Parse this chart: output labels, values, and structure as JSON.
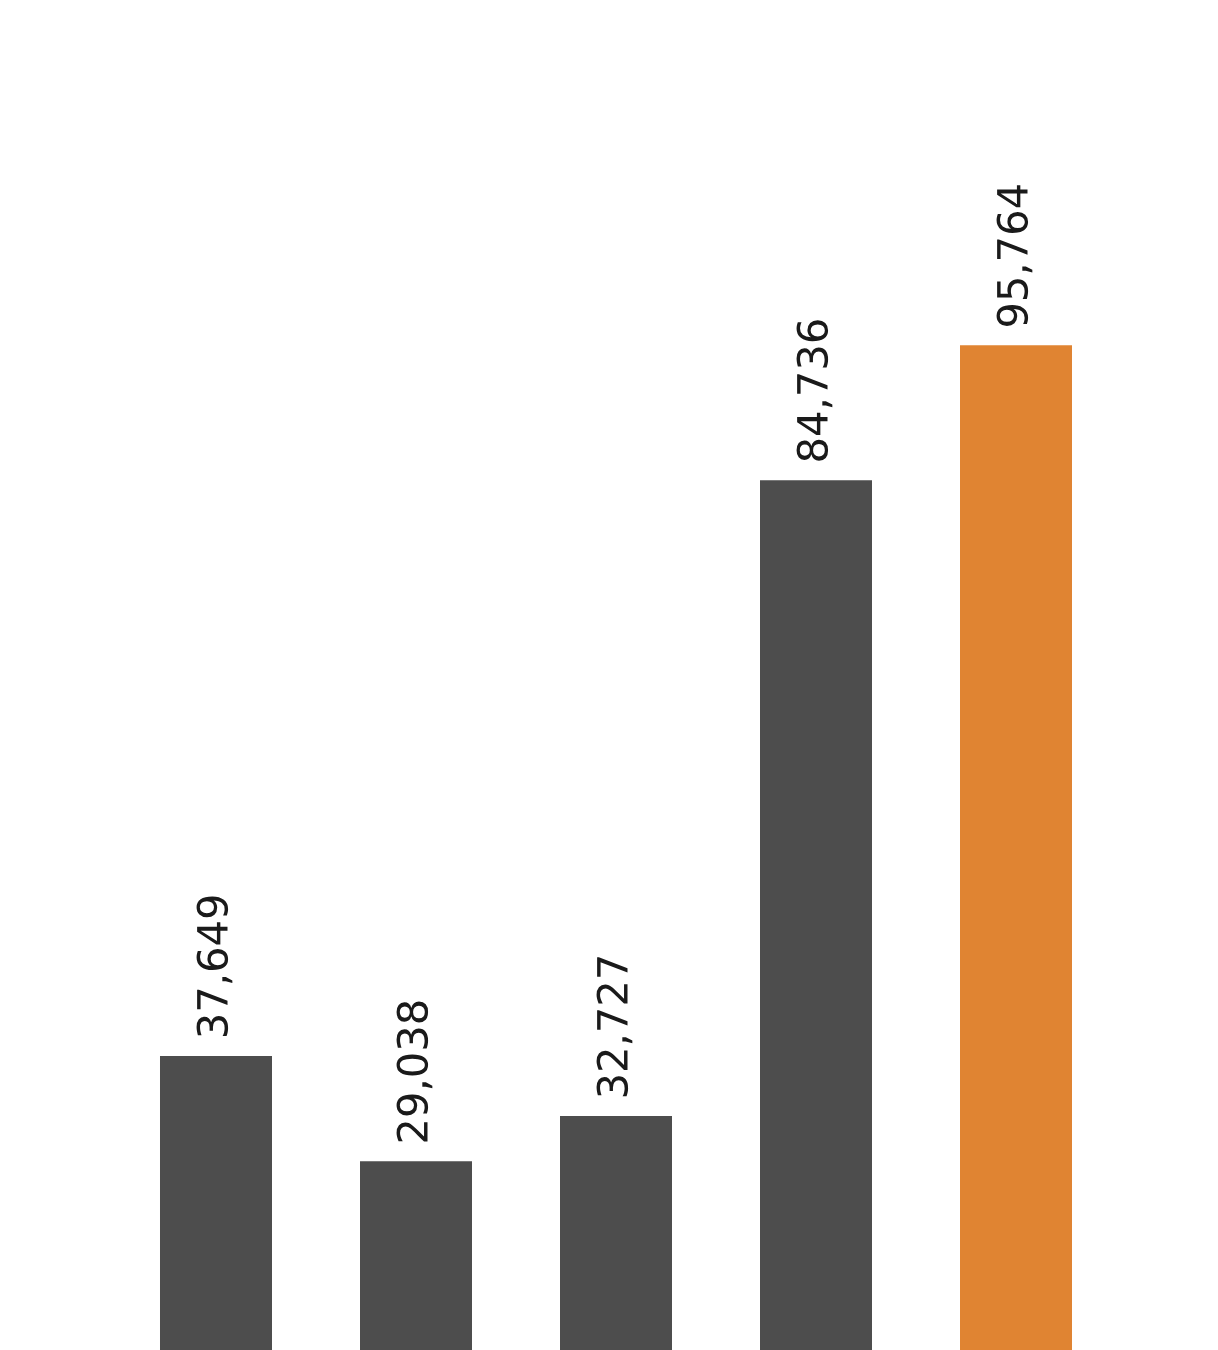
{
  "chart_data": {
    "type": "bar",
    "categories": [
      null,
      null,
      null,
      null,
      null
    ],
    "values": [
      37649,
      29038,
      32727,
      84736,
      95764
    ],
    "colors": [
      "#4d4d4d",
      "#4d4d4d",
      "#4d4d4d",
      "#4d4d4d",
      "#e08432"
    ],
    "value_labels": [
      "37,649",
      "29,038",
      "32,727",
      "84,736",
      "95,764"
    ],
    "ylim": [
      13600,
      124000
    ],
    "grid": false,
    "legend": false
  }
}
